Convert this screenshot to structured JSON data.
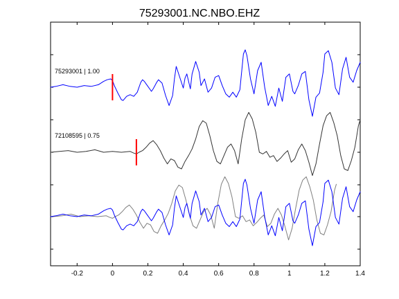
{
  "chart_data": {
    "type": "line",
    "title": "75293001.NC.NBO.EHZ",
    "xlabel": "",
    "ylabel": "",
    "xlim": [
      -0.35,
      1.4
    ],
    "x_ticks": [
      -0.2,
      0,
      0.2,
      0.4,
      0.6,
      0.8,
      1,
      1.2,
      1.4
    ],
    "x_tick_labels": [
      "-0.2",
      "0",
      "0.2",
      "0.4",
      "0.6",
      "0.8",
      "1",
      "1.2",
      "1.4"
    ],
    "y_tick_labels": [],
    "grid": false,
    "series": [
      {
        "label": "75293001 | 1.00",
        "color": "#0000ff",
        "x": [
          -0.35,
          -0.32,
          -0.28,
          -0.24,
          -0.2,
          -0.16,
          -0.12,
          -0.08,
          -0.05,
          -0.03,
          -0.01,
          0.0,
          0.01,
          0.03,
          0.05,
          0.06,
          0.08,
          0.1,
          0.12,
          0.14,
          0.15,
          0.16,
          0.17,
          0.18,
          0.19,
          0.2,
          0.22,
          0.23,
          0.24,
          0.25,
          0.26,
          0.28,
          0.3,
          0.32,
          0.34,
          0.35,
          0.36,
          0.38,
          0.4,
          0.41,
          0.42,
          0.44,
          0.45,
          0.47,
          0.49,
          0.5,
          0.52,
          0.54,
          0.56,
          0.58,
          0.6,
          0.62,
          0.64,
          0.66,
          0.68,
          0.7,
          0.72,
          0.74,
          0.75,
          0.76,
          0.78,
          0.8,
          0.82,
          0.84,
          0.86,
          0.88,
          0.9,
          0.92,
          0.94,
          0.96,
          0.98,
          1.0,
          1.02,
          1.03,
          1.05,
          1.07,
          1.09,
          1.11,
          1.13,
          1.15,
          1.17,
          1.19,
          1.2,
          1.22,
          1.24,
          1.26,
          1.28,
          1.3,
          1.32,
          1.34,
          1.36,
          1.38,
          1.4
        ],
        "y": [
          0.0,
          0.05,
          0.15,
          0.05,
          0.0,
          0.1,
          0.05,
          0.15,
          0.35,
          0.45,
          0.5,
          0.4,
          0.1,
          -0.35,
          -0.75,
          -0.8,
          -0.55,
          -0.45,
          -0.55,
          -0.3,
          0.0,
          0.3,
          0.45,
          0.35,
          0.2,
          0.05,
          -0.25,
          -0.1,
          0.1,
          0.3,
          0.45,
          0.25,
          -0.5,
          -1.1,
          -0.5,
          0.5,
          1.25,
          0.6,
          -0.05,
          0.55,
          0.8,
          -0.1,
          0.8,
          1.55,
          0.9,
          0.1,
          0.5,
          -0.3,
          -0.05,
          0.6,
          0.7,
          0.1,
          -0.4,
          -0.6,
          -0.3,
          -0.6,
          -0.15,
          2.0,
          2.25,
          1.9,
          0.5,
          -0.4,
          1.0,
          1.5,
          0.0,
          -1.1,
          -0.55,
          -1.15,
          -0.05,
          -0.85,
          0.6,
          0.8,
          -0.25,
          -0.4,
          0.1,
          0.8,
          0.95,
          -0.75,
          -1.75,
          -0.6,
          -0.35,
          0.9,
          2.0,
          2.2,
          1.5,
          -0.05,
          -0.45,
          1.1,
          1.8,
          0.6,
          0.3,
          1.0,
          1.5
        ]
      },
      {
        "label": "72108595 | 0.75",
        "color": "#333333",
        "x": [
          -0.35,
          -0.3,
          -0.25,
          -0.2,
          -0.15,
          -0.1,
          -0.05,
          0.0,
          0.05,
          0.1,
          0.12,
          0.135,
          0.15,
          0.17,
          0.19,
          0.21,
          0.23,
          0.25,
          0.27,
          0.29,
          0.31,
          0.33,
          0.35,
          0.37,
          0.39,
          0.41,
          0.43,
          0.45,
          0.47,
          0.49,
          0.51,
          0.53,
          0.55,
          0.57,
          0.59,
          0.61,
          0.63,
          0.65,
          0.67,
          0.69,
          0.71,
          0.73,
          0.75,
          0.77,
          0.79,
          0.81,
          0.83,
          0.85,
          0.87,
          0.89,
          0.91,
          0.93,
          0.95,
          0.97,
          0.99,
          1.01,
          1.03,
          1.05,
          1.07,
          1.09,
          1.11,
          1.13,
          1.15,
          1.17,
          1.19,
          1.21,
          1.23,
          1.25,
          1.27,
          1.29,
          1.31,
          1.33,
          1.35,
          1.37,
          1.39,
          1.4
        ],
        "y": [
          0.0,
          0.05,
          0.1,
          0.0,
          0.05,
          0.15,
          0.0,
          0.05,
          0.0,
          0.05,
          -0.05,
          -0.1,
          0.0,
          0.1,
          0.3,
          0.55,
          0.7,
          0.45,
          0.1,
          -0.35,
          -0.7,
          -0.4,
          -0.5,
          -0.9,
          -1.0,
          -0.55,
          -0.2,
          0.2,
          0.8,
          1.55,
          1.9,
          1.75,
          1.0,
          0.1,
          -0.55,
          -0.7,
          -0.2,
          0.3,
          0.5,
          0.1,
          -0.7,
          0.8,
          1.95,
          2.4,
          2.0,
          1.2,
          0.0,
          -0.1,
          0.05,
          -0.3,
          -0.2,
          -0.55,
          -0.35,
          -0.1,
          0.1,
          -0.6,
          -0.4,
          0.15,
          0.5,
          0.1,
          -0.6,
          -1.4,
          -0.7,
          0.5,
          1.6,
          2.2,
          2.4,
          1.8,
          1.0,
          -0.2,
          -1.0,
          -1.1,
          -0.5,
          0.3,
          1.6,
          1.95
        ]
      }
    ],
    "overlay": {
      "description_source": "third panel overlays both traces",
      "blue_label": "75293001 | 1.00",
      "gray_label": "72108595 | 0.75",
      "gray_color": "#7f7f7f",
      "gray_shift": -0.135
    },
    "picks": [
      {
        "trace": 0,
        "x": 0.0,
        "color": "#ff0000"
      },
      {
        "trace": 1,
        "x": 0.135,
        "color": "#ff0000"
      }
    ]
  }
}
